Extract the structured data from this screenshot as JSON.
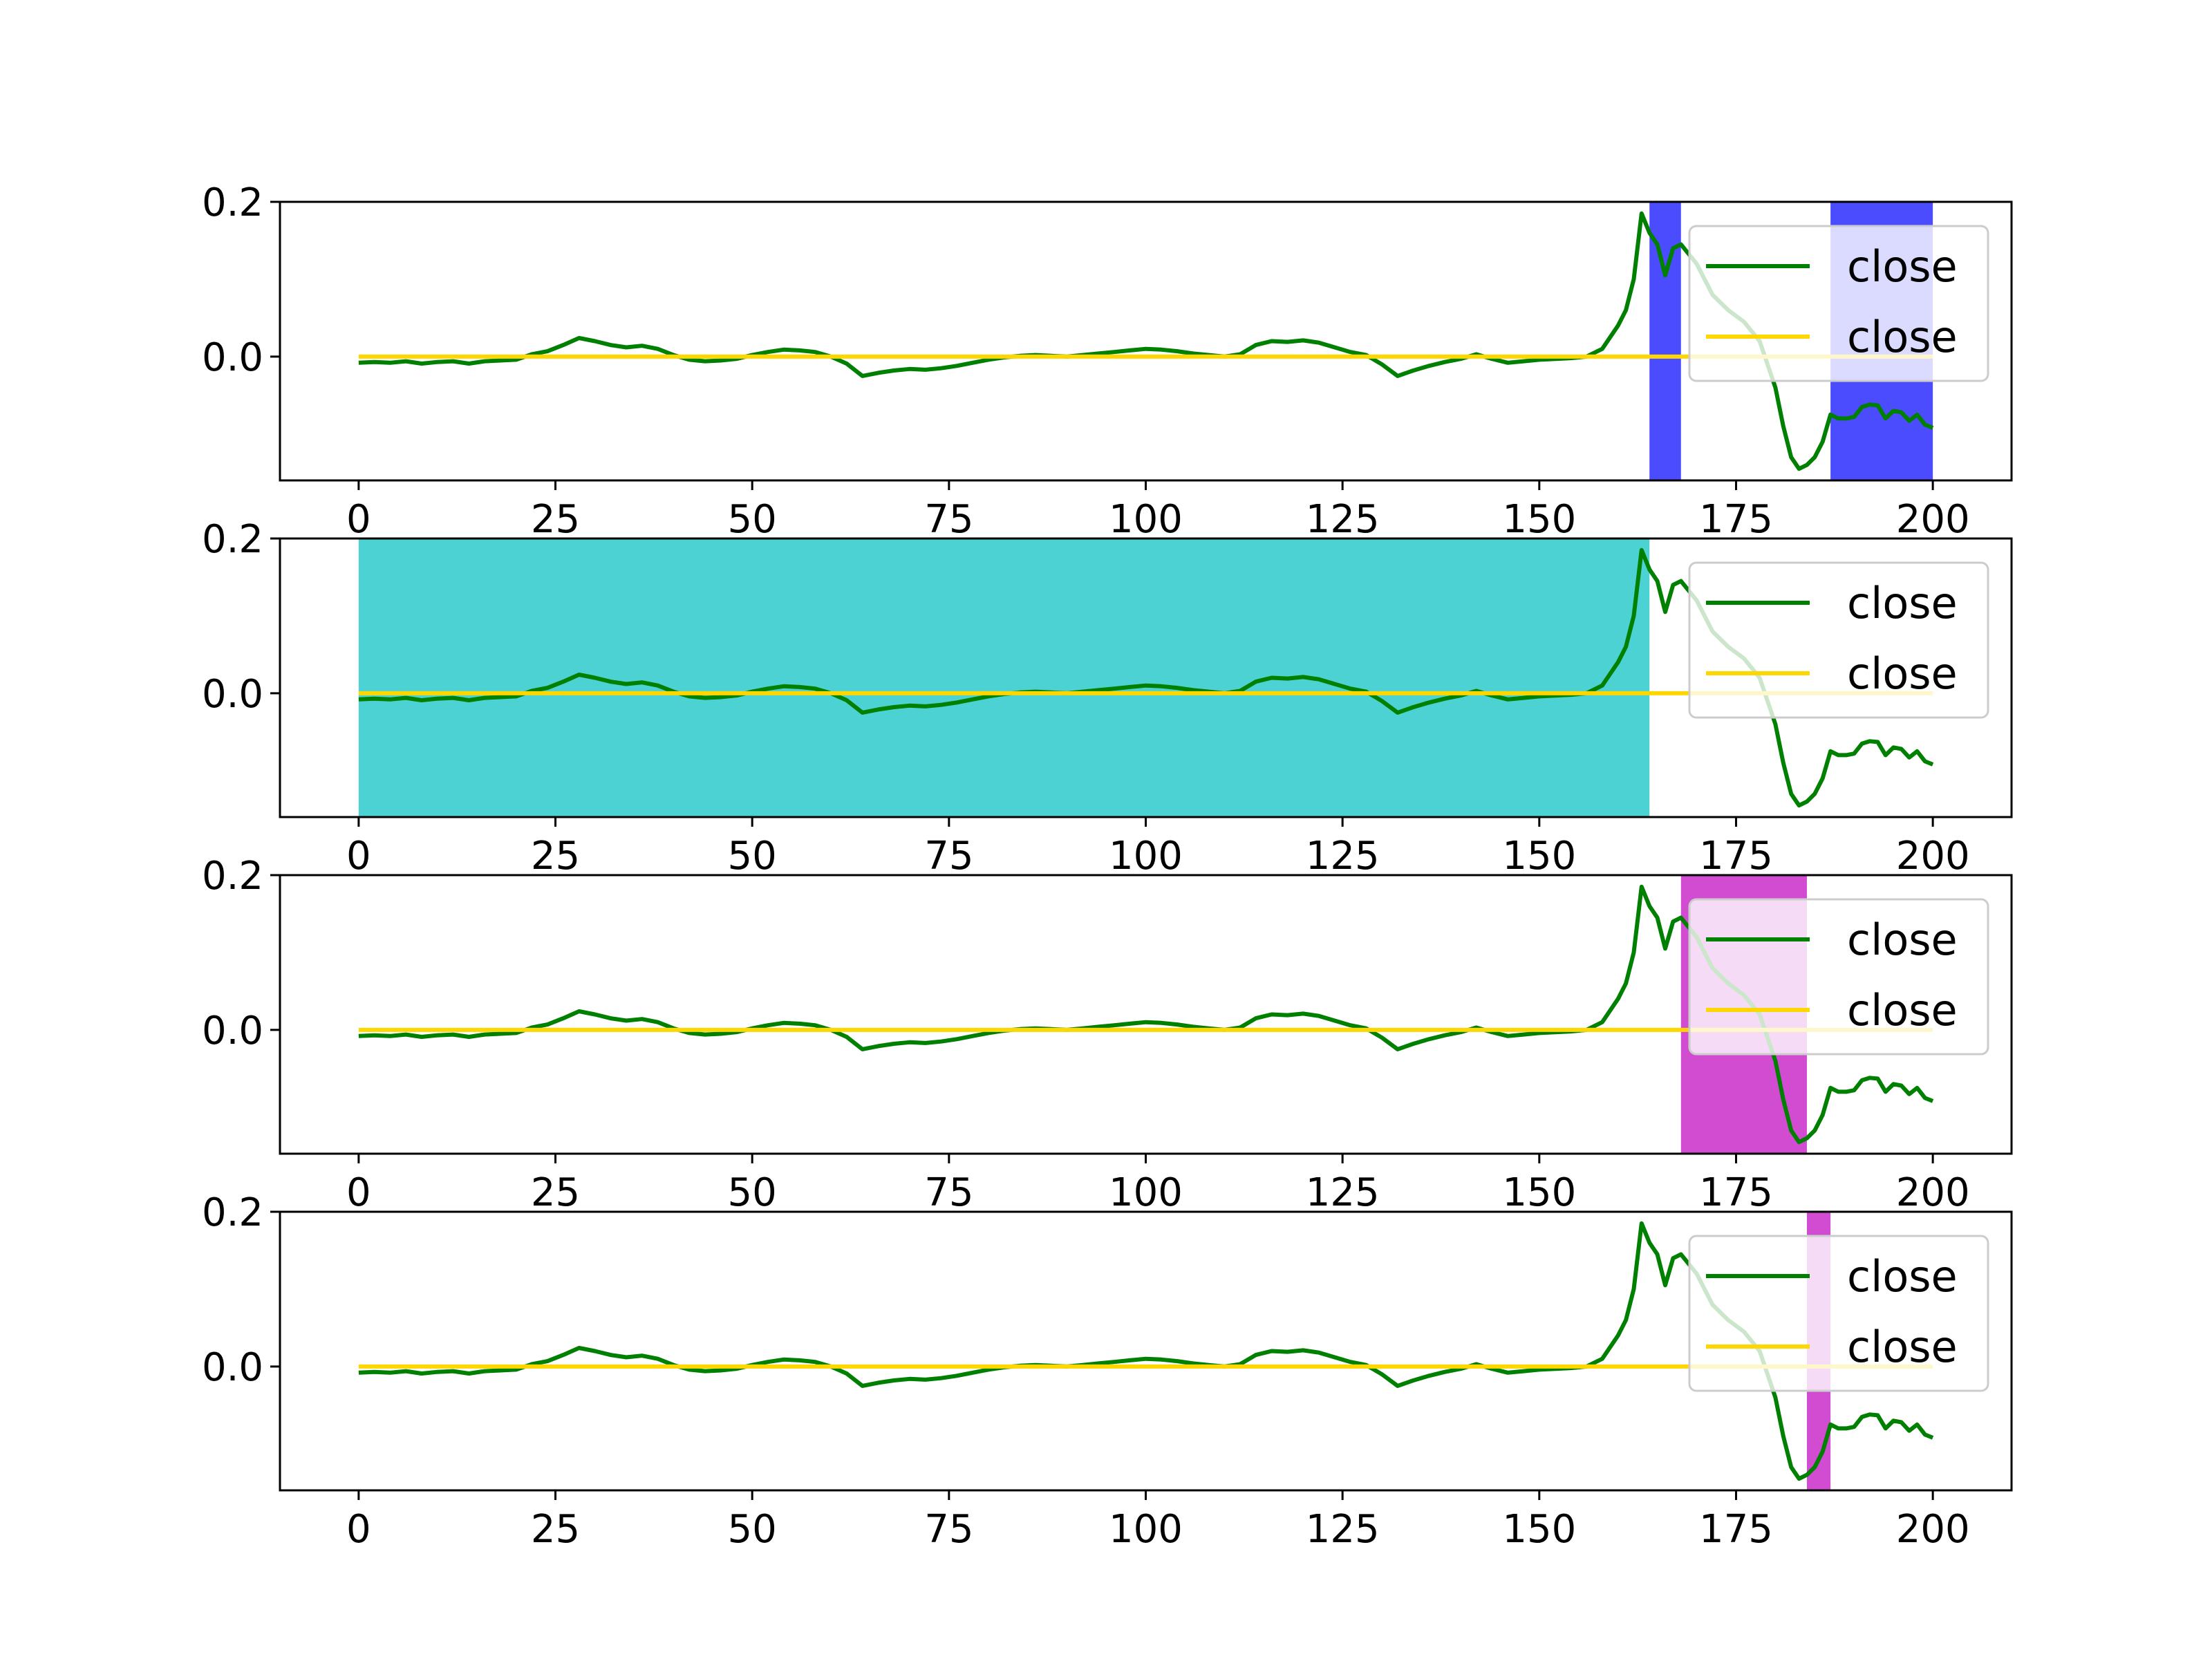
{
  "chart_data": {
    "type": "line",
    "xlim": [
      -10,
      210
    ],
    "ylim": [
      -0.16,
      0.2
    ],
    "x_ticks": [
      0,
      25,
      50,
      75,
      100,
      125,
      150,
      175,
      200
    ],
    "x_tick_labels": [
      "0",
      "25",
      "50",
      "75",
      "100",
      "125",
      "150",
      "175",
      "200"
    ],
    "y_ticks": [
      0.2,
      0.0
    ],
    "y_tick_labels": [
      "0.2",
      "0.0"
    ],
    "grid": false,
    "legend_placement": "upper-right",
    "series": [
      {
        "name": "close",
        "color": "#008000",
        "x": [
          0,
          2,
          4,
          6,
          8,
          10,
          12,
          14,
          16,
          18,
          20,
          22,
          24,
          26,
          28,
          30,
          32,
          34,
          36,
          38,
          40,
          42,
          44,
          46,
          48,
          50,
          52,
          54,
          56,
          58,
          60,
          62,
          64,
          66,
          68,
          70,
          72,
          74,
          76,
          78,
          80,
          82,
          84,
          86,
          88,
          90,
          92,
          94,
          96,
          98,
          100,
          102,
          104,
          106,
          108,
          110,
          112,
          114,
          116,
          118,
          120,
          122,
          124,
          126,
          128,
          130,
          132,
          134,
          136,
          138,
          140,
          142,
          144,
          146,
          148,
          150,
          152,
          154,
          156,
          158,
          160,
          161,
          162,
          163,
          164,
          165,
          166,
          167,
          168,
          170,
          172,
          174,
          176,
          178,
          180,
          181,
          182,
          183,
          184,
          185,
          186,
          187,
          188,
          189,
          190,
          191,
          192,
          193,
          194,
          195,
          196,
          197,
          198,
          199,
          200
        ],
        "y": [
          -0.008,
          -0.007,
          -0.008,
          -0.006,
          -0.009,
          -0.007,
          -0.006,
          -0.009,
          -0.006,
          -0.005,
          -0.004,
          0.003,
          0.007,
          0.015,
          0.024,
          0.02,
          0.015,
          0.012,
          0.014,
          0.01,
          0.002,
          -0.004,
          -0.006,
          -0.005,
          -0.003,
          0.002,
          0.006,
          0.009,
          0.008,
          0.006,
          0.0,
          -0.009,
          -0.025,
          -0.021,
          -0.018,
          -0.016,
          -0.017,
          -0.015,
          -0.012,
          -0.008,
          -0.004,
          -0.001,
          0.001,
          0.002,
          0.001,
          0.0,
          0.002,
          0.004,
          0.006,
          0.008,
          0.01,
          0.009,
          0.007,
          0.004,
          0.002,
          0.0,
          0.003,
          0.015,
          0.02,
          0.019,
          0.021,
          0.018,
          0.012,
          0.006,
          0.002,
          -0.01,
          -0.025,
          -0.018,
          -0.012,
          -0.007,
          -0.003,
          0.003,
          -0.003,
          -0.008,
          -0.006,
          -0.004,
          -0.003,
          -0.002,
          0.0,
          0.01,
          0.04,
          0.06,
          0.1,
          0.185,
          0.16,
          0.145,
          0.105,
          0.14,
          0.145,
          0.12,
          0.08,
          0.06,
          0.045,
          0.02,
          -0.04,
          -0.09,
          -0.13,
          -0.145,
          -0.14,
          -0.13,
          -0.11,
          -0.075,
          -0.08,
          -0.08,
          -0.078,
          -0.065,
          -0.062,
          -0.063,
          -0.08,
          -0.07,
          -0.072,
          -0.083,
          -0.075,
          -0.088,
          -0.092
        ]
      },
      {
        "name": "close",
        "color": "#FFD700",
        "x": [
          0,
          200
        ],
        "y": [
          0,
          0
        ]
      }
    ],
    "panels": [
      {
        "spans": [
          {
            "x0": 164,
            "x1": 168,
            "color": "#0000FF",
            "opacity": 0.7
          },
          {
            "x0": 187,
            "x1": 200,
            "color": "#0000FF",
            "opacity": 0.7
          }
        ]
      },
      {
        "spans": [
          {
            "x0": 0,
            "x1": 164,
            "color": "#00BFBF",
            "opacity": 0.7
          }
        ]
      },
      {
        "spans": [
          {
            "x0": 168,
            "x1": 184,
            "color": "#BF00BF",
            "opacity": 0.7
          }
        ]
      },
      {
        "spans": [
          {
            "x0": 184,
            "x1": 187,
            "color": "#BF00BF",
            "opacity": 0.7
          }
        ]
      }
    ]
  }
}
